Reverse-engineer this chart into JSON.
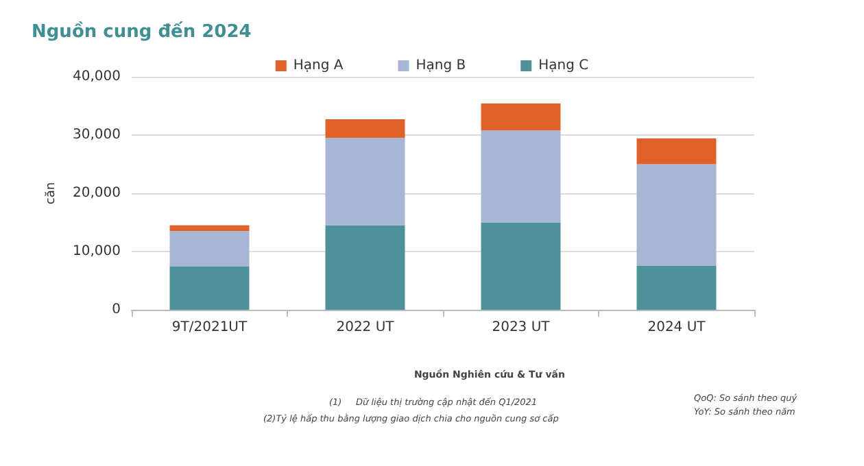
{
  "chart_data": {
    "type": "bar",
    "title": "Nguồn cung đến 2024",
    "ylabel": "căn",
    "categories": [
      "9T/2021UT",
      "2022 UT",
      "2023 UT",
      "2024 UT"
    ],
    "series": [
      {
        "name": "Hạng C",
        "color": "#4e9198",
        "values": [
          7400,
          14500,
          15000,
          7600
        ]
      },
      {
        "name": "Hạng B",
        "color": "#a6b6d4",
        "values": [
          6100,
          15000,
          15800,
          17400
        ]
      },
      {
        "name": "Hạng A",
        "color": "#e0622a",
        "values": [
          1000,
          3200,
          4600,
          4400
        ]
      }
    ],
    "stacked": true,
    "ylim": [
      0,
      40000
    ],
    "yticks": [
      0,
      {
        "value": 10000,
        "label": "10,000"
      },
      {
        "value": 20000,
        "label": "20,000"
      },
      {
        "value": 30000,
        "label": "30,000"
      },
      {
        "value": 40000,
        "label": "40,000"
      }
    ],
    "grid": "y",
    "legend": "top",
    "annotations": [
      "Nguồn Nghiên cứu & Tư vấn",
      "(1)     Dữ liệu thị trường cập nhật đến Q1/2021",
      "(2)Tỷ lệ hấp thu bằng lượng giao dịch chia cho nguồn cung sơ cấp",
      "QoQ: So sánh theo quý",
      "YoY: So sánh theo năm"
    ]
  }
}
